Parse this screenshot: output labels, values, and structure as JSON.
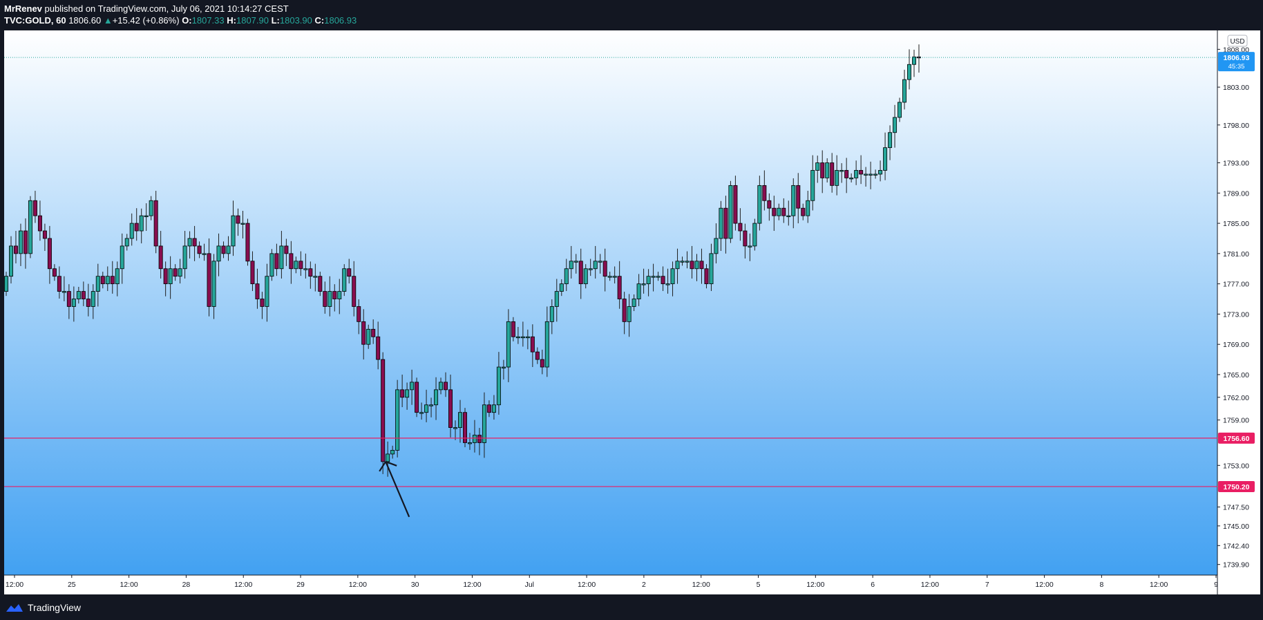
{
  "header": {
    "author": "MrRenev",
    "published": "published on TradingView.com, July 06, 2021 10:14:27 CEST",
    "symbol": "TVC:GOLD, 60",
    "last": "1806.60",
    "change_arrow": "▲",
    "change": "+15.42 (+0.86%)",
    "o_label": "O:",
    "o_value": "1807.33",
    "h_label": "H:",
    "h_value": "1807.90",
    "l_label": "L:",
    "l_value": "1803.90",
    "c_label": "C:",
    "c_value": "1806.93"
  },
  "footer": {
    "brand": "TradingView",
    "logo_icon": "tradingview-logo-icon"
  },
  "colors": {
    "background": "#131722",
    "plot_top": "#ffffff",
    "plot_bottom": "#42a1f2",
    "bull_candle": "#26a69a",
    "bear_candle": "#880e4f",
    "candle_outline": "#000000",
    "level_line": "#e91e63",
    "current_price": "#2196f3"
  },
  "chart_data": {
    "type": "candlestick",
    "currency": "USD",
    "ylim": [
      1738.5,
      1810.5
    ],
    "y_ticks": [
      "1808.00",
      "1803.00",
      "1798.00",
      "1793.00",
      "1789.00",
      "1785.00",
      "1781.00",
      "1777.00",
      "1773.00",
      "1769.00",
      "1765.00",
      "1762.00",
      "1759.00",
      "1753.00",
      "1747.50",
      "1745.00",
      "1742.40",
      "1739.90"
    ],
    "x_ticks": [
      "12:00",
      "25",
      "12:00",
      "28",
      "12:00",
      "29",
      "12:00",
      "30",
      "12:00",
      "Jul",
      "12:00",
      "2",
      "12:00",
      "5",
      "12:00",
      "6",
      "12:00",
      "7",
      "12:00",
      "8",
      "12:00",
      "9"
    ],
    "horizontal_levels": [
      {
        "price": 1756.6,
        "label": "1756.60"
      },
      {
        "price": 1750.2,
        "label": "1750.20"
      }
    ],
    "current_price": {
      "value": 1806.93,
      "label": "1806.93",
      "countdown": "45:35"
    },
    "annotation": {
      "type": "arrow",
      "points_to": 1753.5
    },
    "segments": [
      {
        "start": 1776,
        "values": [
          1778,
          1782,
          1781,
          1784,
          1781,
          1788,
          1786,
          1784,
          1783,
          1779,
          1778,
          1776,
          1776,
          1774,
          1775,
          1776,
          1775,
          1774,
          1776,
          1778,
          1777,
          1778,
          1777,
          1779,
          1782,
          1783,
          1785,
          1784,
          1786,
          1786,
          1788,
          1782,
          1779,
          1777,
          1779,
          1778,
          1779,
          1782,
          1783,
          1782,
          1781,
          1781,
          1774,
          1780,
          1782,
          1781,
          1782,
          1786,
          1785,
          1785,
          1780,
          1777,
          1775,
          1774,
          1778,
          1781,
          1779,
          1782,
          1781,
          1779,
          1780,
          1779,
          1779,
          1778,
          1778,
          1776,
          1774,
          1776,
          1775,
          1776,
          1779,
          1778,
          1774,
          1772,
          1769,
          1771,
          1770,
          1767,
          1753.5,
          1754.5,
          1755,
          1763,
          1762,
          1763,
          1764,
          1760,
          1760,
          1761,
          1761,
          1763,
          1764,
          1763,
          1758,
          1758,
          1760,
          1756,
          1756,
          1757,
          1756,
          1761,
          1760,
          1761,
          1766,
          1766,
          1772,
          1770,
          1770,
          1770,
          1770,
          1768,
          1767,
          1766,
          1772,
          1774,
          1776,
          1777,
          1779,
          1780,
          1780,
          1777,
          1779,
          1779,
          1780,
          1780,
          1778,
          1778,
          1778,
          1775,
          1772,
          1774,
          1775,
          1777,
          1777,
          1778,
          1778,
          1778,
          1777,
          1777,
          1779,
          1780,
          1780,
          1780,
          1779,
          1780,
          1779,
          1777,
          1781,
          1783,
          1787,
          1783,
          1790,
          1785,
          1784,
          1782,
          1782,
          1785,
          1790,
          1788,
          1787,
          1786,
          1787,
          1786,
          1786,
          1790,
          1787,
          1786,
          1788,
          1792,
          1793,
          1791,
          1793,
          1790,
          1792,
          1792,
          1791,
          1791,
          1792,
          1791.5,
          1791.5
        ]
      },
      {
        "start": 1791.5,
        "values": [
          1791.5,
          1791.5,
          1792,
          1795,
          1797,
          1799,
          1801,
          1804,
          1806,
          1807,
          1806.93
        ]
      }
    ]
  }
}
